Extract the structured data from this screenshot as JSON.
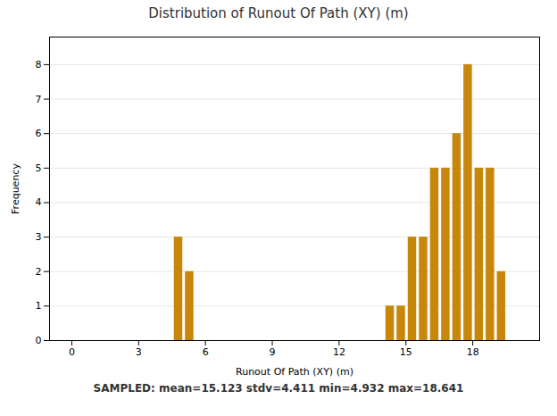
{
  "chart_data": {
    "type": "bar",
    "title": "Distribution of Runout Of Path (XY) (m)",
    "xlabel": "Runout Of Path (XY) (m)",
    "ylabel": "Frequency",
    "annotations": [
      "SAMPLED: mean=15.123  stdv=4.411  min=4.932  max=18.641"
    ],
    "x": [
      4.6,
      5.1,
      14.1,
      14.6,
      15.1,
      15.6,
      16.1,
      16.6,
      17.1,
      17.6,
      18.1,
      18.6,
      19.1
    ],
    "widths": [
      0.38,
      0.38,
      0.38,
      0.38,
      0.38,
      0.38,
      0.38,
      0.38,
      0.38,
      0.38,
      0.38,
      0.38,
      0.38
    ],
    "values": [
      3,
      2,
      1,
      1,
      3,
      3,
      5,
      5,
      6,
      8,
      5,
      5,
      2
    ],
    "color": "#C8860A",
    "xlim": [
      -1,
      21
    ],
    "xticks": [
      0,
      3,
      6,
      9,
      12,
      15,
      18
    ],
    "ylim": [
      0,
      8.8
    ],
    "yticks": [
      0,
      1,
      2,
      3,
      4,
      5,
      6,
      7,
      8
    ],
    "grid": true
  }
}
